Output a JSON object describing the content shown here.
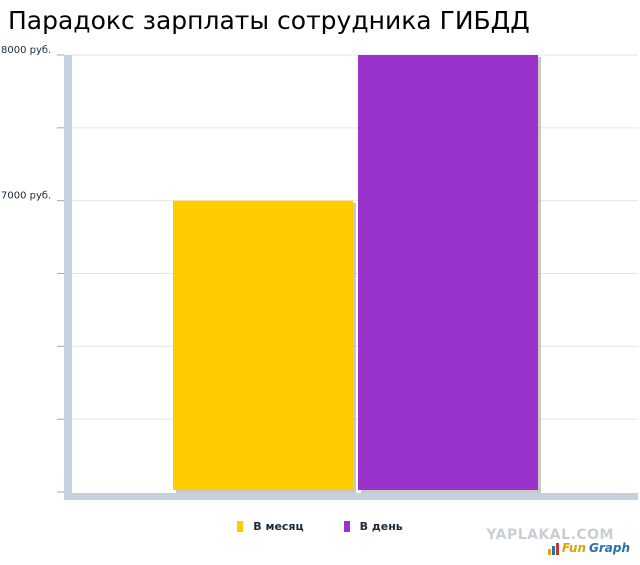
{
  "title": "Парадокс зарплаты сотрудника ГИБДД",
  "chart_data": {
    "type": "bar",
    "ylim": [
      5000,
      8000
    ],
    "grid": true,
    "legend_position": "bottom-center",
    "y_tick_values": [
      5000,
      5500,
      6000,
      6500,
      7000,
      7500,
      8000
    ],
    "y_tick_labels": [
      {
        "value": 8000,
        "label": "8000 руб."
      },
      {
        "value": 7000,
        "label": "7000 руб."
      }
    ],
    "series": [
      {
        "name": "В месяц",
        "value": 7000,
        "color": "#ffcc00"
      },
      {
        "name": "В день",
        "value": 8000,
        "color": "#9933cc"
      }
    ]
  },
  "legend": [
    {
      "label": "В месяц",
      "color": "#ffcc00"
    },
    {
      "label": "В день",
      "color": "#9933cc"
    }
  ],
  "watermark": "YAPLAKAL.COM",
  "brand": {
    "part1": "Fun",
    "part2": "Graph"
  }
}
